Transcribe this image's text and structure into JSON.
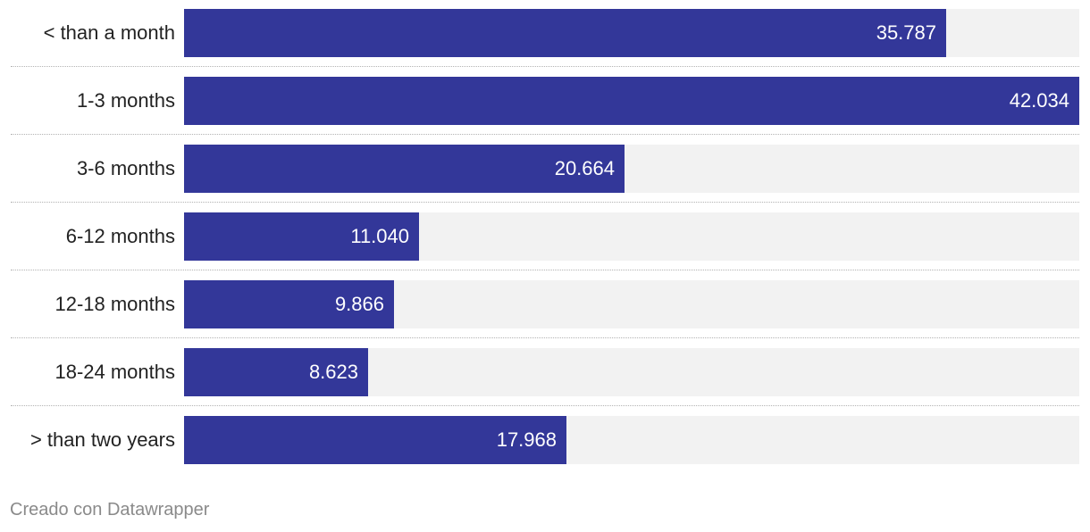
{
  "chart_data": {
    "type": "bar",
    "orientation": "horizontal",
    "categories": [
      "< than a month",
      "1-3 months",
      "3-6 months",
      "6-12 months",
      "12-18 months",
      "18-24 months",
      "> than two years"
    ],
    "values": [
      35787,
      42034,
      20664,
      11040,
      9866,
      8623,
      17968
    ],
    "value_labels": [
      "35.787",
      "42.034",
      "20.664",
      "11.040",
      "9.866",
      "8.623",
      "17.968"
    ],
    "xlim": [
      0,
      42034
    ],
    "grid": false,
    "legend": "none"
  },
  "colors": {
    "bar": "#333799",
    "track": "#f2f2f2",
    "value_text": "#ffffff"
  },
  "credit": "Creado con Datawrapper"
}
